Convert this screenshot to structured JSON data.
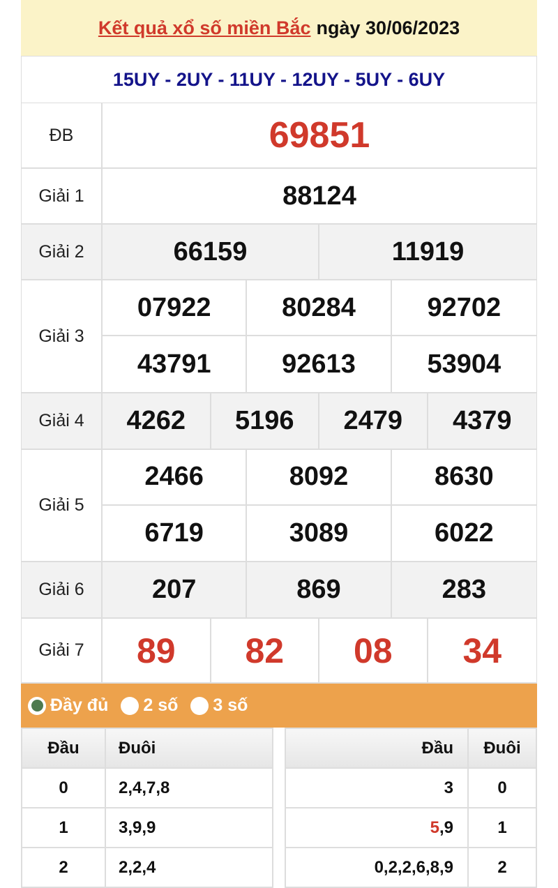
{
  "header": {
    "title_link": "Kết quả xổ số miền Bắc",
    "date_text": "ngày 30/06/2023"
  },
  "codes": "15UY - 2UY - 11UY - 12UY - 5UY - 6UY",
  "prizes": [
    {
      "label": "ĐB",
      "numbers": [
        "69851"
      ],
      "cols": 1,
      "red": true,
      "height": 94,
      "gray": false
    },
    {
      "label": "Giải 1",
      "numbers": [
        "88124"
      ],
      "cols": 1,
      "height": 80,
      "gray": false
    },
    {
      "label": "Giải 2",
      "numbers": [
        "66159",
        "11919"
      ],
      "cols": 2,
      "height": 80,
      "gray": true
    },
    {
      "label": "Giải 3",
      "numbers": [
        "07922",
        "80284",
        "92702",
        "43791",
        "92613",
        "53904"
      ],
      "cols": 3,
      "height": 162,
      "gray": false
    },
    {
      "label": "Giải 4",
      "numbers": [
        "4262",
        "5196",
        "2479",
        "4379"
      ],
      "cols": 4,
      "height": 81,
      "gray": true
    },
    {
      "label": "Giải 5",
      "numbers": [
        "2466",
        "8092",
        "8630",
        "6719",
        "3089",
        "6022"
      ],
      "cols": 3,
      "height": 161,
      "gray": false
    },
    {
      "label": "Giải 6",
      "numbers": [
        "207",
        "869",
        "283"
      ],
      "cols": 3,
      "height": 81,
      "gray": true
    },
    {
      "label": "Giải 7",
      "numbers": [
        "89",
        "82",
        "08",
        "34"
      ],
      "cols": 4,
      "red": true,
      "height": 93,
      "gray": false
    }
  ],
  "options": [
    {
      "label": "Đầy đủ",
      "selected": true
    },
    {
      "label": "2 số",
      "selected": false
    },
    {
      "label": "3 số",
      "selected": false
    }
  ],
  "loto_left": {
    "headers": [
      "Đầu",
      "Đuôi"
    ],
    "rows": [
      {
        "dau": "0",
        "duoi": "2,4,7,8"
      },
      {
        "dau": "1",
        "duoi": "3,9,9"
      },
      {
        "dau": "2",
        "duoi": "2,2,4"
      }
    ]
  },
  "loto_right": {
    "headers": [
      "Đầu",
      "Đuôi"
    ],
    "rows": [
      {
        "dau_red": "",
        "dau": "3",
        "duoi": "0"
      },
      {
        "dau_red": "5",
        "dau": ",9",
        "duoi": "1"
      },
      {
        "dau_red": "",
        "dau": "0,2,2,6,8,9",
        "duoi": "2"
      }
    ]
  },
  "colors": {
    "red": "#d0392b",
    "navy": "#14148a",
    "orange": "#eda24c",
    "header_bg": "#fbf3c8"
  }
}
